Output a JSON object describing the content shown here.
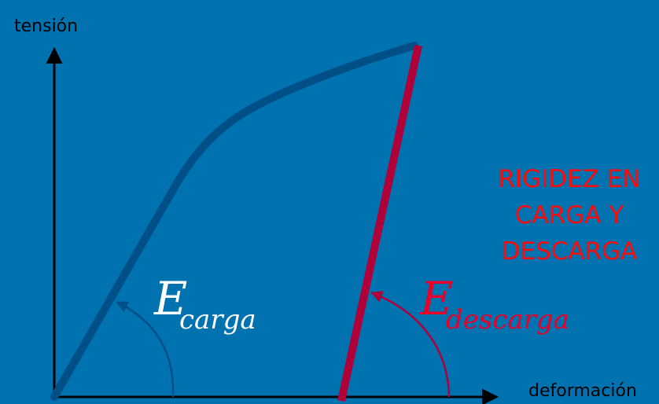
{
  "colors": {
    "background": "#0072b0",
    "loading_curve": "#004f86",
    "unloading_line": "#b0003a",
    "title_text": "#ff0a0a",
    "axis": "#000000",
    "label_white": "#ffffff",
    "label_red": "#e8002a"
  },
  "axes": {
    "y_label": "tensión",
    "x_label": "deformación"
  },
  "title": {
    "line1": "RIGIDEZ EN",
    "line2": "CARGA Y",
    "line3": "DESCARGA"
  },
  "labels": {
    "e_carga_main": "E",
    "e_carga_sub": "carga",
    "e_descarga_main": "E",
    "e_descarga_sub": "descarga"
  }
}
